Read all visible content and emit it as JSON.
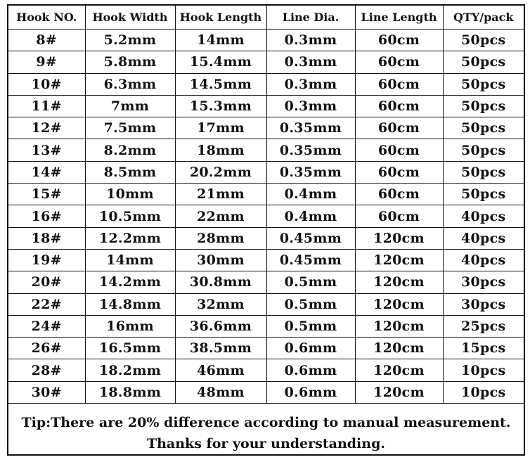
{
  "headers": [
    "Hook NO.",
    "Hook Width",
    "Hook Length",
    "Line Dia.",
    "Line Length",
    "QTY/pack"
  ],
  "rows": [
    [
      "8#",
      "5.2mm",
      "14mm",
      "0.3mm",
      "60cm",
      "50pcs"
    ],
    [
      "9#",
      "5.8mm",
      "15.4mm",
      "0.3mm",
      "60cm",
      "50pcs"
    ],
    [
      "10#",
      "6.3mm",
      "14.5mm",
      "0.3mm",
      "60cm",
      "50pcs"
    ],
    [
      "11#",
      "7mm",
      "15.3mm",
      "0.3mm",
      "60cm",
      "50pcs"
    ],
    [
      "12#",
      "7.5mm",
      "17mm",
      "0.35mm",
      "60cm",
      "50pcs"
    ],
    [
      "13#",
      "8.2mm",
      "18mm",
      "0.35mm",
      "60cm",
      "50pcs"
    ],
    [
      "14#",
      "8.5mm",
      "20.2mm",
      "0.35mm",
      "60cm",
      "50pcs"
    ],
    [
      "15#",
      "10mm",
      "21mm",
      "0.4mm",
      "60cm",
      "50pcs"
    ],
    [
      "16#",
      "10.5mm",
      "22mm",
      "0.4mm",
      "60cm",
      "40pcs"
    ],
    [
      "18#",
      "12.2mm",
      "28mm",
      "0.45mm",
      "120cm",
      "40pcs"
    ],
    [
      "19#",
      "14mm",
      "30mm",
      "0.45mm",
      "120cm",
      "40pcs"
    ],
    [
      "20#",
      "14.2mm",
      "30.8mm",
      "0.5mm",
      "120cm",
      "30pcs"
    ],
    [
      "22#",
      "14.8mm",
      "32mm",
      "0.5mm",
      "120cm",
      "30pcs"
    ],
    [
      "24#",
      "16mm",
      "36.6mm",
      "0.5mm",
      "120cm",
      "25pcs"
    ],
    [
      "26#",
      "16.5mm",
      "38.5mm",
      "0.6mm",
      "120cm",
      "15pcs"
    ],
    [
      "28#",
      "18.2mm",
      "46mm",
      "0.6mm",
      "120cm",
      "10pcs"
    ],
    [
      "30#",
      "18.8mm",
      "48mm",
      "0.6mm",
      "120cm",
      "10pcs"
    ]
  ],
  "tip": {
    "line1": "Tip:There are 20% difference according to manual measurement.",
    "line2": "Thanks for your understanding."
  }
}
